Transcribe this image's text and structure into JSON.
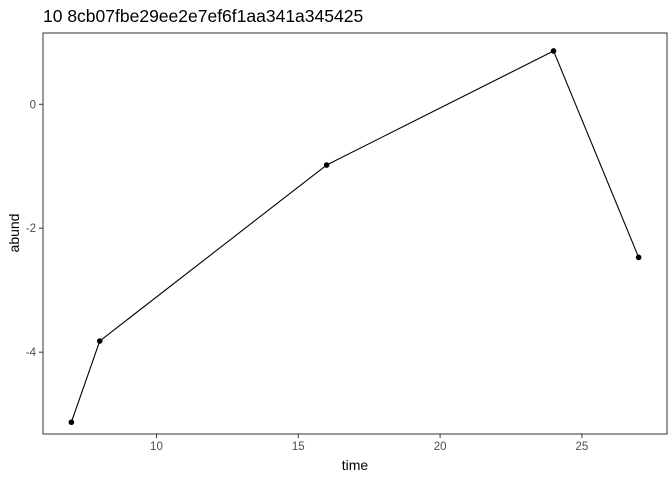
{
  "chart_data": {
    "type": "line",
    "title": "10 8cb07fbe29ee2e7ef6f1aa341a345425",
    "xlabel": "time",
    "ylabel": "abund",
    "x": [
      7,
      8,
      16,
      24,
      27
    ],
    "series": [
      {
        "values": [
          -5.13,
          -3.82,
          -0.98,
          0.86,
          -2.47
        ]
      }
    ],
    "xlim": [
      6.0,
      28.0
    ],
    "ylim": [
      -5.32,
      1.15
    ],
    "xticks": [
      10,
      15,
      20,
      25
    ],
    "yticks": [
      0,
      -2,
      -4
    ],
    "xtick_labels": [
      "10",
      "15",
      "20",
      "25"
    ],
    "ytick_labels": [
      "0",
      "-2",
      "-4"
    ],
    "grid": false,
    "legend": "none",
    "line_color": "#000000",
    "point_color": "#000000",
    "frame_color": "#333333",
    "tick_color": "#333333"
  }
}
